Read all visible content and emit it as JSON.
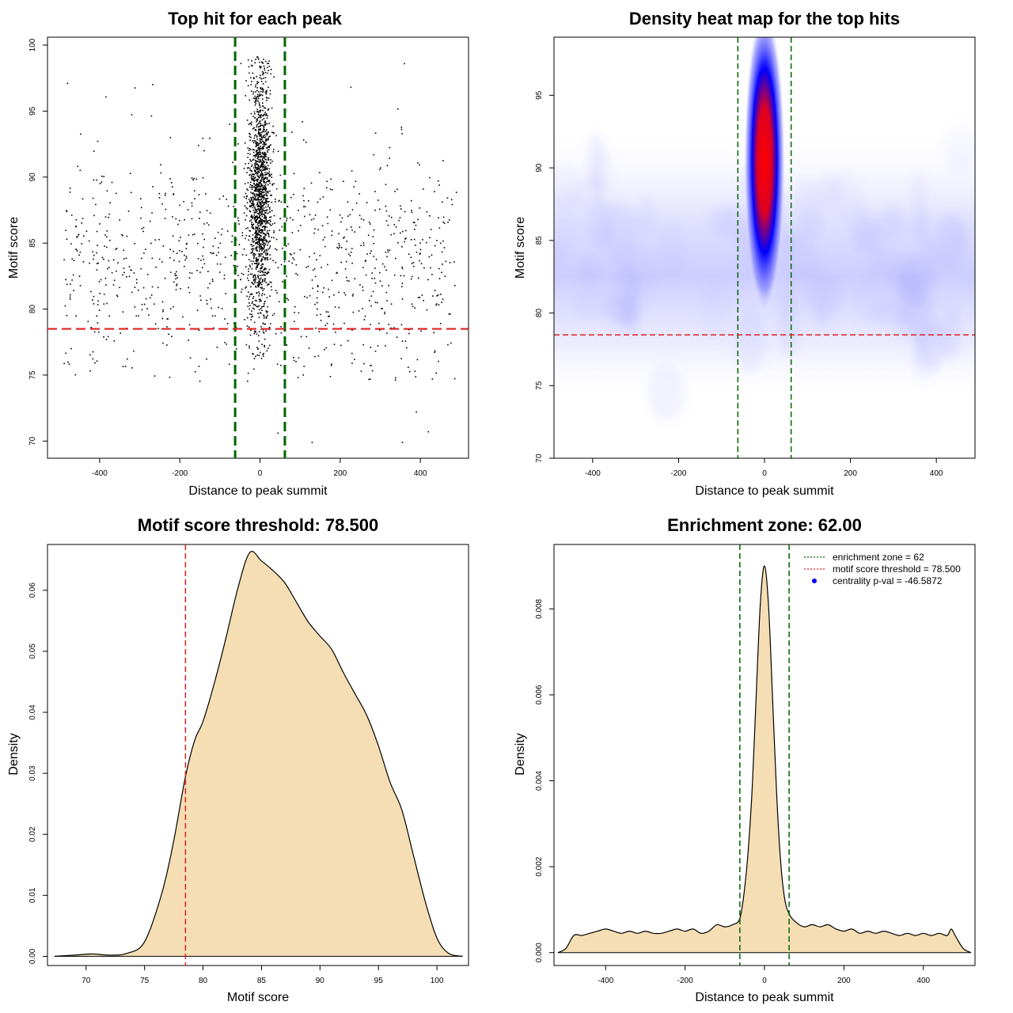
{
  "chart_data": [
    {
      "type": "scatter",
      "title": "Top hit for each peak",
      "xlabel": "Distance to peak summit",
      "ylabel": "Motif score",
      "xlim": [
        -530,
        520
      ],
      "ylim": [
        68.7,
        100.6
      ],
      "xticks": [
        -400,
        -200,
        0,
        200,
        400
      ],
      "yticks": [
        70,
        75,
        80,
        85,
        90,
        95,
        100
      ],
      "xtick_labels": [
        "-400",
        "-200",
        "0",
        "200",
        "400"
      ],
      "ytick_labels": [
        "70",
        "75",
        "80",
        "85",
        "90",
        "95",
        "100"
      ],
      "vlines": [
        -62,
        62
      ],
      "hline": 78.5,
      "colors": {
        "points": "#000000",
        "vline": "#006400",
        "hline": "#dd2222"
      },
      "series": [
        {
          "points_description_estimated": true,
          "background": {
            "count": 950,
            "x_range": [
              -490,
              490
            ],
            "y_mean": 83.5,
            "y_sd": 4.2
          }
        },
        {
          "central": {
            "count": 1500,
            "x_mean": 0,
            "x_sd": 14,
            "y_mean": 88.5,
            "y_sd": 4.8
          }
        },
        {
          "outliers": [
            [
              360,
              98.6
            ],
            [
              390,
              72.2
            ],
            [
              420,
              70.7
            ],
            [
              130,
              69.9
            ],
            [
              355,
              69.9
            ],
            [
              -480,
              97.1
            ],
            [
              45,
              70.6
            ]
          ]
        }
      ]
    },
    {
      "type": "heatmap",
      "title": "Density heat map for the top hits",
      "xlabel": "Distance to peak summit",
      "ylabel": "Motif score",
      "xlim": [
        -490,
        490
      ],
      "ylim": [
        70,
        99
      ],
      "xticks": [
        -400,
        -200,
        0,
        200,
        400
      ],
      "yticks": [
        70,
        75,
        80,
        85,
        90,
        95
      ],
      "xtick_labels": [
        "-400",
        "-200",
        "0",
        "200",
        "400"
      ],
      "ytick_labels": [
        "70",
        "75",
        "80",
        "85",
        "90",
        "95"
      ],
      "vlines": [
        -62,
        62
      ],
      "hline": 78.5,
      "colors": {
        "low": "#ffffff",
        "mid": "#0000ff",
        "high": "#ff0000",
        "vline": "#006400",
        "hline": "#dd2222"
      },
      "peak": {
        "x": 0,
        "y": 90.5,
        "x_sd": 22,
        "y_sd": 4.6
      },
      "background_band": {
        "y": 83.5,
        "y_sd": 3.2
      }
    },
    {
      "type": "area",
      "title": "Motif score threshold: 78.500",
      "xlabel": "Motif score",
      "ylabel": "Density",
      "xlim": [
        66.7,
        102.7
      ],
      "ylim": [
        -0.0015,
        0.0675
      ],
      "xticks": [
        70,
        75,
        80,
        85,
        90,
        95,
        100
      ],
      "yticks": [
        0,
        0.01,
        0.02,
        0.03,
        0.04,
        0.05,
        0.06
      ],
      "xtick_labels": [
        "70",
        "75",
        "80",
        "85",
        "90",
        "95",
        "100"
      ],
      "ytick_labels": [
        "0.00",
        "0.01",
        "0.02",
        "0.03",
        "0.04",
        "0.05",
        "0.06"
      ],
      "vline": 78.5,
      "colors": {
        "fill": "#f5deb3",
        "line": "#000000",
        "vline": "#dd2222"
      },
      "x": [
        67.3,
        69,
        70.5,
        72,
        73.5,
        75,
        76.5,
        77.5,
        78.5,
        79.3,
        80,
        81,
        82,
        83,
        84,
        85,
        86,
        87,
        88,
        89,
        90,
        91,
        92,
        93,
        94,
        95,
        96,
        97,
        98,
        99,
        100,
        101,
        102.2
      ],
      "y": [
        0,
        0.0002,
        0.0004,
        0.0002,
        0.0005,
        0.0024,
        0.0105,
        0.019,
        0.0295,
        0.0355,
        0.0385,
        0.045,
        0.0525,
        0.0605,
        0.0662,
        0.0648,
        0.0632,
        0.0612,
        0.058,
        0.0548,
        0.0525,
        0.0503,
        0.0465,
        0.043,
        0.0395,
        0.0345,
        0.0285,
        0.024,
        0.0165,
        0.009,
        0.003,
        0.0005,
        0
      ]
    },
    {
      "type": "area",
      "title": "Enrichment zone: 62.00",
      "xlabel": "Distance to peak summit",
      "ylabel": "Density",
      "xlim": [
        -530,
        530
      ],
      "ylim": [
        -0.0003,
        0.0095
      ],
      "xticks": [
        -400,
        -200,
        0,
        200,
        400
      ],
      "yticks": [
        0,
        0.002,
        0.004,
        0.006,
        0.008
      ],
      "xtick_labels": [
        "-400",
        "-200",
        "0",
        "200",
        "400"
      ],
      "ytick_labels": [
        "0.000",
        "0.002",
        "0.004",
        "0.006",
        "0.008"
      ],
      "vlines": [
        -62,
        62
      ],
      "colors": {
        "fill": "#f5deb3",
        "line": "#000000",
        "vline": "#006400"
      },
      "x": [
        -520,
        -500,
        -480,
        -460,
        -440,
        -420,
        -400,
        -380,
        -360,
        -340,
        -320,
        -300,
        -280,
        -260,
        -240,
        -220,
        -200,
        -180,
        -160,
        -140,
        -120,
        -100,
        -80,
        -62,
        -50,
        -40,
        -30,
        -20,
        -10,
        0,
        10,
        20,
        30,
        40,
        50,
        62,
        80,
        100,
        120,
        140,
        160,
        180,
        200,
        220,
        240,
        260,
        280,
        300,
        320,
        340,
        360,
        380,
        400,
        420,
        440,
        460,
        470,
        480,
        500,
        520
      ],
      "y": [
        0,
        0.0001,
        0.0004,
        0.0004,
        0.00045,
        0.0005,
        0.00055,
        0.0005,
        0.00045,
        0.0005,
        0.00045,
        0.0005,
        0.00045,
        0.00045,
        0.0005,
        0.00055,
        0.0005,
        0.00055,
        0.00045,
        0.0005,
        0.00065,
        0.0006,
        0.00065,
        0.0008,
        0.0015,
        0.0025,
        0.004,
        0.0062,
        0.0082,
        0.009,
        0.0081,
        0.006,
        0.0038,
        0.0022,
        0.0013,
        0.0009,
        0.0007,
        0.0006,
        0.00065,
        0.0006,
        0.00065,
        0.00055,
        0.0005,
        0.00055,
        0.00045,
        0.0005,
        0.00045,
        0.0005,
        0.00045,
        0.0004,
        0.00045,
        0.0004,
        0.00045,
        0.0004,
        0.00045,
        0.0004,
        0.00055,
        0.0004,
        0.0001,
        0
      ]
    }
  ],
  "legend": {
    "items": [
      {
        "label": "enrichment zone = 62",
        "style": "dotted",
        "color": "#006400"
      },
      {
        "label": "motif score threshold = 78.500",
        "style": "dotted",
        "color": "#dd2222"
      },
      {
        "label": "centrality p-val = -46.5872",
        "style": "dot",
        "color": "#0000ff"
      }
    ]
  }
}
